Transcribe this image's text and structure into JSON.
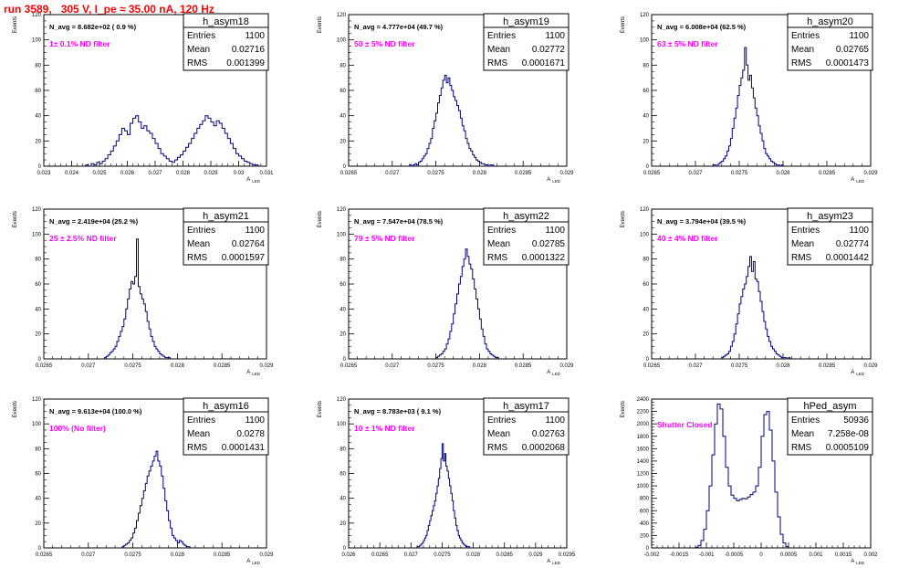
{
  "header": {
    "title": "run 3589,   305 V, I_pe ≈ 35.00 nA, 120 Hz"
  },
  "colors": {
    "histogram": "#000080",
    "annotation": "#ff00ff",
    "title": "#ff0000",
    "text": "#000000"
  },
  "chart_data": [
    {
      "type": "histogram",
      "title": "h_asym18",
      "stats": [
        [
          "Entries",
          "1100"
        ],
        [
          "Mean",
          "0.02716"
        ],
        [
          "RMS",
          "0.001399"
        ]
      ],
      "navg": "N_avg = 8.682e+02 ( 0.9 %)",
      "note": "1± 0.1% ND filter",
      "ylabel": "Events",
      "xlabel": "A_LED",
      "xlim": [
        0.023,
        0.031
      ],
      "ylim": [
        0,
        120
      ],
      "xticks": [
        0.023,
        0.024,
        0.025,
        0.026,
        0.027,
        0.028,
        0.029,
        0.03,
        0.031
      ],
      "xtick_labels": [
        "0.023",
        "0.024",
        "0.025",
        "0.026",
        "0.027",
        "0.028",
        "0.029",
        "0.03",
        "0.031"
      ],
      "yticks": [
        0,
        20,
        40,
        60,
        80,
        100,
        120
      ],
      "ytick_labels": [
        "0",
        "20",
        "40",
        "60",
        "80",
        "100",
        "120"
      ],
      "bins": {
        "start": 0.0245,
        "width": 0.0001,
        "values": [
          1,
          0,
          2,
          1,
          3,
          2,
          4,
          6,
          9,
          12,
          16,
          20,
          25,
          30,
          28,
          25,
          34,
          38,
          40,
          35,
          30,
          32,
          28,
          26,
          22,
          18,
          14,
          10,
          8,
          6,
          4,
          3,
          5,
          7,
          9,
          12,
          15,
          18,
          22,
          26,
          30,
          33,
          36,
          40,
          38,
          35,
          32,
          36,
          34,
          30,
          26,
          22,
          18,
          14,
          10,
          8,
          6,
          4,
          3,
          2,
          1,
          1
        ]
      }
    },
    {
      "type": "histogram",
      "title": "h_asym19",
      "stats": [
        [
          "Entries",
          "1100"
        ],
        [
          "Mean",
          "0.02772"
        ],
        [
          "RMS",
          "0.0001671"
        ]
      ],
      "navg": "N_avg = 4.777e+04 (49.7 %)",
      "note": "50 ± 5% ND filter",
      "ylabel": "Events",
      "xlabel": "A_LED",
      "xlim": [
        0.0265,
        0.029
      ],
      "ylim": [
        0,
        120
      ],
      "xticks": [
        0.0265,
        0.027,
        0.0275,
        0.028,
        0.0285,
        0.029
      ],
      "xtick_labels": [
        "0.0265",
        "0.027",
        "0.0275",
        "0.028",
        "0.0285",
        "0.029"
      ],
      "yticks": [
        0,
        20,
        40,
        60,
        80,
        100,
        120
      ],
      "ytick_labels": [
        "0",
        "20",
        "40",
        "60",
        "80",
        "100",
        "120"
      ],
      "bins": {
        "start": 0.0272,
        "width": 2e-05,
        "values": [
          1,
          0,
          1,
          2,
          1,
          3,
          4,
          6,
          8,
          10,
          14,
          18,
          22,
          30,
          36,
          42,
          50,
          56,
          62,
          68,
          72,
          66,
          70,
          64,
          60,
          55,
          52,
          48,
          44,
          38,
          32,
          28,
          22,
          18,
          14,
          12,
          9,
          7,
          5,
          4,
          3,
          2,
          2,
          1,
          1,
          0,
          1,
          1
        ]
      }
    },
    {
      "type": "histogram",
      "title": "h_asym20",
      "stats": [
        [
          "Entries",
          "1100"
        ],
        [
          "Mean",
          "0.02765"
        ],
        [
          "RMS",
          "0.0001473"
        ]
      ],
      "navg": "N_avg = 6.008e+04 (62.5 %)",
      "note": "63 ± 5% ND filter",
      "ylabel": "Events",
      "xlabel": "A_LED",
      "xlim": [
        0.0265,
        0.029
      ],
      "ylim": [
        0,
        120
      ],
      "xticks": [
        0.0265,
        0.027,
        0.0275,
        0.028,
        0.0285,
        0.029
      ],
      "xtick_labels": [
        "0.0265",
        "0.027",
        "0.0275",
        "0.028",
        "0.0285",
        "0.029"
      ],
      "yticks": [
        0,
        20,
        40,
        60,
        80,
        100,
        120
      ],
      "ytick_labels": [
        "0",
        "20",
        "40",
        "60",
        "80",
        "100",
        "120"
      ],
      "bins": {
        "start": 0.0272,
        "width": 2e-05,
        "values": [
          1,
          1,
          0,
          2,
          3,
          4,
          6,
          8,
          12,
          16,
          22,
          30,
          38,
          46,
          56,
          64,
          70,
          76,
          94,
          80,
          68,
          72,
          62,
          54,
          46,
          40,
          32,
          26,
          20,
          14,
          10,
          8,
          6,
          4,
          3,
          2,
          1,
          1,
          0,
          1
        ]
      }
    },
    {
      "type": "histogram",
      "title": "h_asym21",
      "stats": [
        [
          "Entries",
          "1100"
        ],
        [
          "Mean",
          "0.02764"
        ],
        [
          "RMS",
          "0.0001597"
        ]
      ],
      "navg": "N_avg = 2.419e+04 (25.2 %)",
      "note": "25 ± 2.5% ND filter",
      "ylabel": "Events",
      "xlabel": "A_LED",
      "xlim": [
        0.0265,
        0.029
      ],
      "ylim": [
        0,
        120
      ],
      "xticks": [
        0.0265,
        0.027,
        0.0275,
        0.028,
        0.0285,
        0.029
      ],
      "xtick_labels": [
        "0.0265",
        "0.027",
        "0.0275",
        "0.028",
        "0.0285",
        "0.029"
      ],
      "yticks": [
        0,
        20,
        40,
        60,
        80,
        100,
        120
      ],
      "ytick_labels": [
        "0",
        "20",
        "40",
        "60",
        "80",
        "100",
        "120"
      ],
      "bins": {
        "start": 0.02718,
        "width": 2e-05,
        "values": [
          1,
          2,
          3,
          5,
          6,
          8,
          10,
          14,
          18,
          22,
          26,
          32,
          40,
          48,
          56,
          62,
          60,
          66,
          96,
          58,
          52,
          48,
          44,
          38,
          30,
          24,
          18,
          14,
          10,
          8,
          6,
          4,
          3,
          2,
          1,
          1,
          1
        ]
      }
    },
    {
      "type": "histogram",
      "title": "h_asym22",
      "stats": [
        [
          "Entries",
          "1100"
        ],
        [
          "Mean",
          "0.02785"
        ],
        [
          "RMS",
          "0.0001322"
        ]
      ],
      "navg": "N_avg = 7.547e+04 (78.5 %)",
      "note": "79 ± 5% ND filter",
      "ylabel": "Events",
      "xlabel": "A_LED",
      "xlim": [
        0.0265,
        0.029
      ],
      "ylim": [
        0,
        120
      ],
      "xticks": [
        0.0265,
        0.027,
        0.0275,
        0.028,
        0.0285,
        0.029
      ],
      "xtick_labels": [
        "0.0265",
        "0.027",
        "0.0275",
        "0.028",
        "0.0285",
        "0.029"
      ],
      "yticks": [
        0,
        20,
        40,
        60,
        80,
        100,
        120
      ],
      "ytick_labels": [
        "0",
        "20",
        "40",
        "60",
        "80",
        "100",
        "120"
      ],
      "bins": {
        "start": 0.0275,
        "width": 2e-05,
        "values": [
          1,
          2,
          3,
          4,
          6,
          8,
          12,
          16,
          22,
          28,
          36,
          44,
          52,
          60,
          66,
          74,
          80,
          88,
          82,
          76,
          72,
          64,
          56,
          48,
          40,
          32,
          24,
          18,
          12,
          8,
          6,
          4,
          3,
          2,
          1,
          1
        ]
      }
    },
    {
      "type": "histogram",
      "title": "h_asym23",
      "stats": [
        [
          "Entries",
          "1100"
        ],
        [
          "Mean",
          "0.02774"
        ],
        [
          "RMS",
          "0.0001442"
        ]
      ],
      "navg": "N_avg = 3.794e+04 (39.5 %)",
      "note": "40 ± 4% ND filter",
      "ylabel": "Events",
      "xlabel": "A_LED",
      "xlim": [
        0.0265,
        0.029
      ],
      "ylim": [
        0,
        120
      ],
      "xticks": [
        0.0265,
        0.027,
        0.0275,
        0.028,
        0.0285,
        0.029
      ],
      "xtick_labels": [
        "0.0265",
        "0.027",
        "0.0275",
        "0.028",
        "0.0285",
        "0.029"
      ],
      "yticks": [
        0,
        20,
        40,
        60,
        80,
        100,
        120
      ],
      "ytick_labels": [
        "0",
        "20",
        "40",
        "60",
        "80",
        "100",
        "120"
      ],
      "bins": {
        "start": 0.0273,
        "width": 2e-05,
        "values": [
          1,
          2,
          3,
          4,
          6,
          10,
          14,
          20,
          28,
          36,
          44,
          50,
          56,
          60,
          66,
          74,
          82,
          70,
          78,
          64,
          62,
          54,
          46,
          38,
          30,
          24,
          18,
          14,
          10,
          8,
          6,
          4,
          3,
          2,
          1,
          1,
          1,
          0,
          1
        ]
      }
    },
    {
      "type": "histogram",
      "title": "h_asym16",
      "stats": [
        [
          "Entries",
          "1100"
        ],
        [
          "Mean",
          "0.0278"
        ],
        [
          "RMS",
          "0.0001431"
        ]
      ],
      "navg": "N_avg = 9.613e+04 (100.0 %)",
      "note": "100% (No filter)",
      "ylabel": "Events",
      "xlabel": "A_LED",
      "xlim": [
        0.0265,
        0.029
      ],
      "ylim": [
        0,
        120
      ],
      "xticks": [
        0.0265,
        0.027,
        0.0275,
        0.028,
        0.0285,
        0.029
      ],
      "xtick_labels": [
        "0.0265",
        "0.027",
        "0.0275",
        "0.028",
        "0.0285",
        "0.029"
      ],
      "yticks": [
        0,
        20,
        40,
        60,
        80,
        100,
        120
      ],
      "ytick_labels": [
        "0",
        "20",
        "40",
        "60",
        "80",
        "100",
        "120"
      ],
      "bins": {
        "start": 0.02738,
        "width": 2e-05,
        "values": [
          1,
          2,
          3,
          4,
          6,
          8,
          12,
          16,
          22,
          28,
          34,
          40,
          46,
          52,
          58,
          62,
          66,
          70,
          74,
          78,
          70,
          66,
          58,
          48,
          38,
          30,
          22,
          16,
          10,
          8,
          6,
          4,
          6,
          5,
          3,
          2,
          1,
          1
        ]
      }
    },
    {
      "type": "histogram",
      "title": "h_asym17",
      "stats": [
        [
          "Entries",
          "1100"
        ],
        [
          "Mean",
          "0.02763"
        ],
        [
          "RMS",
          "0.0002068"
        ]
      ],
      "navg": "N_avg = 8.783e+03 ( 9.1 %)",
      "note": "10 ± 1% ND filter",
      "ylabel": "Events",
      "xlabel": "A_LED",
      "xlim": [
        0.026,
        0.0295
      ],
      "ylim": [
        0,
        120
      ],
      "xticks": [
        0.026,
        0.0265,
        0.027,
        0.0275,
        0.028,
        0.0285,
        0.029,
        0.0295
      ],
      "xtick_labels": [
        "0.026",
        "0.0265",
        "0.027",
        "0.0275",
        "0.028",
        "0.0285",
        "0.029",
        "0.0295"
      ],
      "yticks": [
        0,
        20,
        40,
        60,
        80,
        100,
        120
      ],
      "ytick_labels": [
        "0",
        "20",
        "40",
        "60",
        "80",
        "100",
        "120"
      ],
      "bins": {
        "start": 0.0271,
        "width": 2e-05,
        "values": [
          1,
          1,
          2,
          3,
          4,
          6,
          8,
          10,
          14,
          18,
          22,
          26,
          30,
          34,
          38,
          44,
          50,
          56,
          64,
          72,
          84,
          70,
          76,
          66,
          62,
          56,
          50,
          44,
          38,
          30,
          24,
          18,
          14,
          10,
          8,
          6,
          4,
          3,
          2,
          1,
          1,
          1
        ]
      }
    },
    {
      "type": "histogram",
      "title": "hPed_asym",
      "stats": [
        [
          "Entries",
          "50936"
        ],
        [
          "Mean",
          "7.258e-08"
        ],
        [
          "RMS",
          "0.0005109"
        ]
      ],
      "navg": "",
      "note": "Shutter Closed",
      "ylabel": "Events",
      "xlabel": "A_LED",
      "xlim": [
        -0.002,
        0.002
      ],
      "ylim": [
        0,
        2400
      ],
      "xticks": [
        -0.002,
        -0.0015,
        -0.001,
        -0.0005,
        0,
        0.0005,
        0.001,
        0.0015,
        0.002
      ],
      "xtick_labels": [
        "-0.002",
        "-0.0015",
        "-0.001",
        "-0.0005",
        "0",
        "0.0005",
        "0.001",
        "0.0015",
        "0.002"
      ],
      "yticks": [
        0,
        200,
        400,
        600,
        800,
        1000,
        1200,
        1400,
        1600,
        1800,
        2000,
        2200,
        2400
      ],
      "ytick_labels": [
        "0",
        "200",
        "400",
        "600",
        "800",
        "1000",
        "1200",
        "1400",
        "1600",
        "1800",
        "2000",
        "2200",
        "2400"
      ],
      "bins": {
        "start": -0.0012,
        "width": 5e-05,
        "values": [
          10,
          40,
          120,
          300,
          600,
          1000,
          1500,
          2000,
          2320,
          2240,
          1800,
          1300,
          1000,
          850,
          800,
          760,
          780,
          800,
          790,
          820,
          860,
          900,
          1000,
          1300,
          1800,
          2150,
          2200,
          1900,
          1400,
          900,
          500,
          220,
          80,
          20
        ]
      }
    }
  ]
}
